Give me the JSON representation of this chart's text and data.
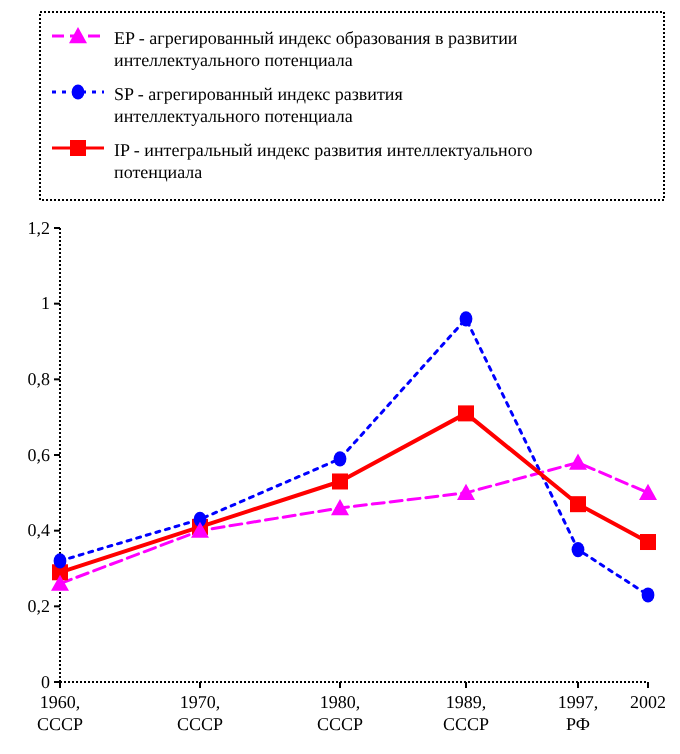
{
  "chart_data": {
    "type": "line",
    "x": [
      1960,
      1970,
      1980,
      1989,
      1997,
      2002
    ],
    "xlim": [
      1960,
      2002
    ],
    "xticks": [
      {
        "value": 1960,
        "label": "1960,\nСССР"
      },
      {
        "value": 1970,
        "label": "1970,\nСССР"
      },
      {
        "value": 1980,
        "label": "1980,\nСССР"
      },
      {
        "value": 1989,
        "label": "1989,\nСССР"
      },
      {
        "value": 1997,
        "label": "1997,\nРФ"
      },
      {
        "value": 2002,
        "label": "2002"
      }
    ],
    "ylim": [
      0,
      1.2
    ],
    "yticks": [
      0,
      {
        "value": 0.2,
        "label": "0,2"
      },
      {
        "value": 0.4,
        "label": "0,4"
      },
      {
        "value": 0.6,
        "label": "0,6"
      },
      {
        "value": 0.8,
        "label": "0,8"
      },
      1,
      {
        "value": 1.2,
        "label": "1,2"
      }
    ],
    "series": [
      {
        "name": "EP - агрегированный индекс образования в развитии интеллектуального потенциала",
        "color": "#ff00ff",
        "marker": "triangle",
        "line_style": "dashed",
        "values": [
          0.26,
          0.4,
          0.46,
          0.5,
          0.58,
          0.5
        ]
      },
      {
        "name": "SP - агрегированный индекс развития интеллектуального потенциала",
        "color": "#0000ff",
        "marker": "circle",
        "line_style": "dotted",
        "values": [
          0.32,
          0.43,
          0.59,
          0.96,
          0.35,
          0.23
        ]
      },
      {
        "name": "IP - интегральный индекс развития интеллектуального потенциала",
        "color": "#ff0000",
        "marker": "square",
        "line_style": "solid",
        "values": [
          0.29,
          0.41,
          0.53,
          0.71,
          0.47,
          0.37
        ]
      }
    ],
    "legend": "top",
    "grid": false
  }
}
